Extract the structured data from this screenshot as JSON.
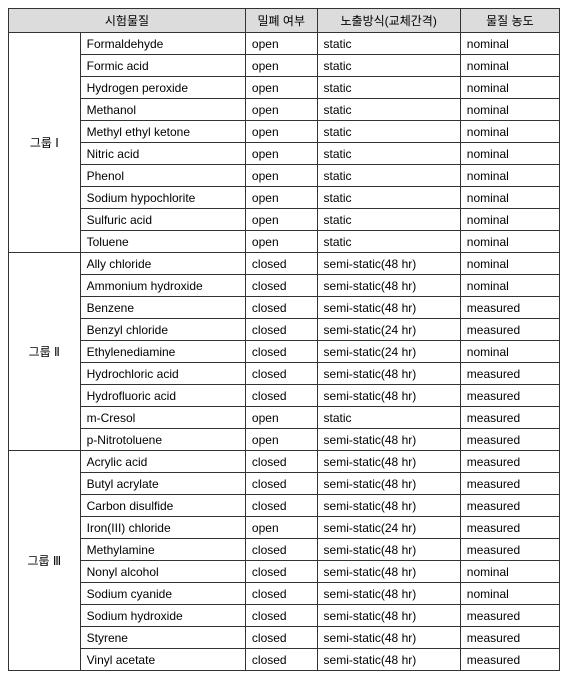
{
  "headers": {
    "substance": "시험물질",
    "closure": "밀폐 여부",
    "exposure": "노출방식(교체간격)",
    "concentration": "물질 농도"
  },
  "groups": [
    {
      "name": "그룹 Ⅰ",
      "rows": [
        {
          "substance": "Formaldehyde",
          "closure": "open",
          "exposure": "static",
          "concentration": "nominal"
        },
        {
          "substance": "Formic acid",
          "closure": "open",
          "exposure": "static",
          "concentration": "nominal"
        },
        {
          "substance": "Hydrogen peroxide",
          "closure": "open",
          "exposure": "static",
          "concentration": "nominal"
        },
        {
          "substance": "Methanol",
          "closure": "open",
          "exposure": "static",
          "concentration": "nominal"
        },
        {
          "substance": "Methyl ethyl ketone",
          "closure": "open",
          "exposure": "static",
          "concentration": "nominal"
        },
        {
          "substance": "Nitric acid",
          "closure": "open",
          "exposure": "static",
          "concentration": "nominal"
        },
        {
          "substance": "Phenol",
          "closure": "open",
          "exposure": "static",
          "concentration": "nominal"
        },
        {
          "substance": "Sodium hypochlorite",
          "closure": "open",
          "exposure": "static",
          "concentration": "nominal"
        },
        {
          "substance": "Sulfuric acid",
          "closure": "open",
          "exposure": "static",
          "concentration": "nominal"
        },
        {
          "substance": "Toluene",
          "closure": "open",
          "exposure": "static",
          "concentration": "nominal"
        }
      ]
    },
    {
      "name": "그룹 Ⅱ",
      "rows": [
        {
          "substance": "Ally chloride",
          "closure": "closed",
          "exposure": "semi-static(48 hr)",
          "concentration": "nominal"
        },
        {
          "substance": "Ammonium hydroxide",
          "closure": "closed",
          "exposure": "semi-static(48 hr)",
          "concentration": "nominal"
        },
        {
          "substance": "Benzene",
          "closure": "closed",
          "exposure": "semi-static(48 hr)",
          "concentration": "measured"
        },
        {
          "substance": "Benzyl chloride",
          "closure": "closed",
          "exposure": "semi-static(24 hr)",
          "concentration": "measured"
        },
        {
          "substance": "Ethylenediamine",
          "closure": "closed",
          "exposure": "semi-static(24 hr)",
          "concentration": "nominal"
        },
        {
          "substance": "Hydrochloric acid",
          "closure": "closed",
          "exposure": "semi-static(48 hr)",
          "concentration": "measured"
        },
        {
          "substance": "Hydrofluoric acid",
          "closure": "closed",
          "exposure": "semi-static(48 hr)",
          "concentration": "measured"
        },
        {
          "substance": "m-Cresol",
          "closure": "open",
          "exposure": "static",
          "concentration": "measured"
        },
        {
          "substance": "p-Nitrotoluene",
          "closure": "open",
          "exposure": "semi-static(48 hr)",
          "concentration": "measured"
        }
      ]
    },
    {
      "name": "그룹 Ⅲ",
      "rows": [
        {
          "substance": "Acrylic acid",
          "closure": "closed",
          "exposure": "semi-static(48 hr)",
          "concentration": "measured"
        },
        {
          "substance": "Butyl acrylate",
          "closure": "closed",
          "exposure": "semi-static(48 hr)",
          "concentration": "measured"
        },
        {
          "substance": "Carbon disulfide",
          "closure": "closed",
          "exposure": "semi-static(48 hr)",
          "concentration": "measured"
        },
        {
          "substance": "Iron(III) chloride",
          "closure": "open",
          "exposure": "semi-static(24 hr)",
          "concentration": "measured"
        },
        {
          "substance": "Methylamine",
          "closure": "closed",
          "exposure": "semi-static(48 hr)",
          "concentration": "measured"
        },
        {
          "substance": "Nonyl alcohol",
          "closure": "closed",
          "exposure": "semi-static(48 hr)",
          "concentration": "nominal"
        },
        {
          "substance": "Sodium cyanide",
          "closure": "closed",
          "exposure": "semi-static(48 hr)",
          "concentration": "nominal"
        },
        {
          "substance": "Sodium hydroxide",
          "closure": "closed",
          "exposure": "semi-static(48 hr)",
          "concentration": "measured"
        },
        {
          "substance": "Styrene",
          "closure": "closed",
          "exposure": "semi-static(48 hr)",
          "concentration": "measured"
        },
        {
          "substance": "Vinyl acetate",
          "closure": "closed",
          "exposure": "semi-static(48 hr)",
          "concentration": "measured"
        }
      ]
    }
  ]
}
